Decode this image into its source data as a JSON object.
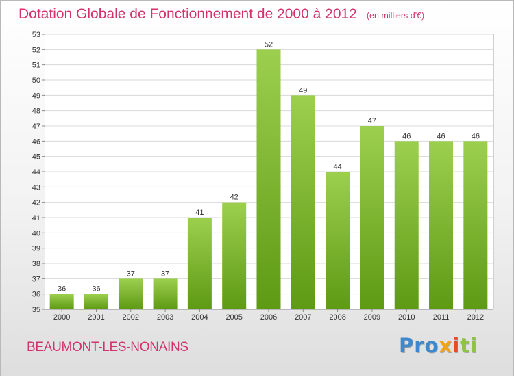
{
  "header": {
    "title": "Dotation Globale de Fonctionnement de 2000 à 2012",
    "unit_note": "(en milliers d'€)"
  },
  "footer": {
    "commune": "BEAUMONT-LES-NONAINS",
    "logo_parts": [
      "Pro",
      "x",
      "i",
      "ti"
    ]
  },
  "colors": {
    "title": "#d2336e",
    "bar_light": "#9ccf4e",
    "bar_dark": "#5e9a14"
  },
  "chart_data": {
    "type": "bar",
    "title": "Dotation Globale de Fonctionnement de 2000 à 2012",
    "subtitle": "(en milliers d'€)",
    "xlabel": "",
    "ylabel": "",
    "categories": [
      "2000",
      "2001",
      "2002",
      "2003",
      "2004",
      "2005",
      "2006",
      "2007",
      "2008",
      "2009",
      "2010",
      "2011",
      "2012"
    ],
    "values": [
      36,
      36,
      37,
      37,
      41,
      42,
      52,
      49,
      44,
      47,
      46,
      46,
      46
    ],
    "ylim": [
      35,
      53
    ],
    "yticks": [
      35,
      36,
      37,
      38,
      39,
      40,
      41,
      42,
      43,
      44,
      45,
      46,
      47,
      48,
      49,
      50,
      51,
      52,
      53
    ],
    "grid": true,
    "data_labels": true
  }
}
